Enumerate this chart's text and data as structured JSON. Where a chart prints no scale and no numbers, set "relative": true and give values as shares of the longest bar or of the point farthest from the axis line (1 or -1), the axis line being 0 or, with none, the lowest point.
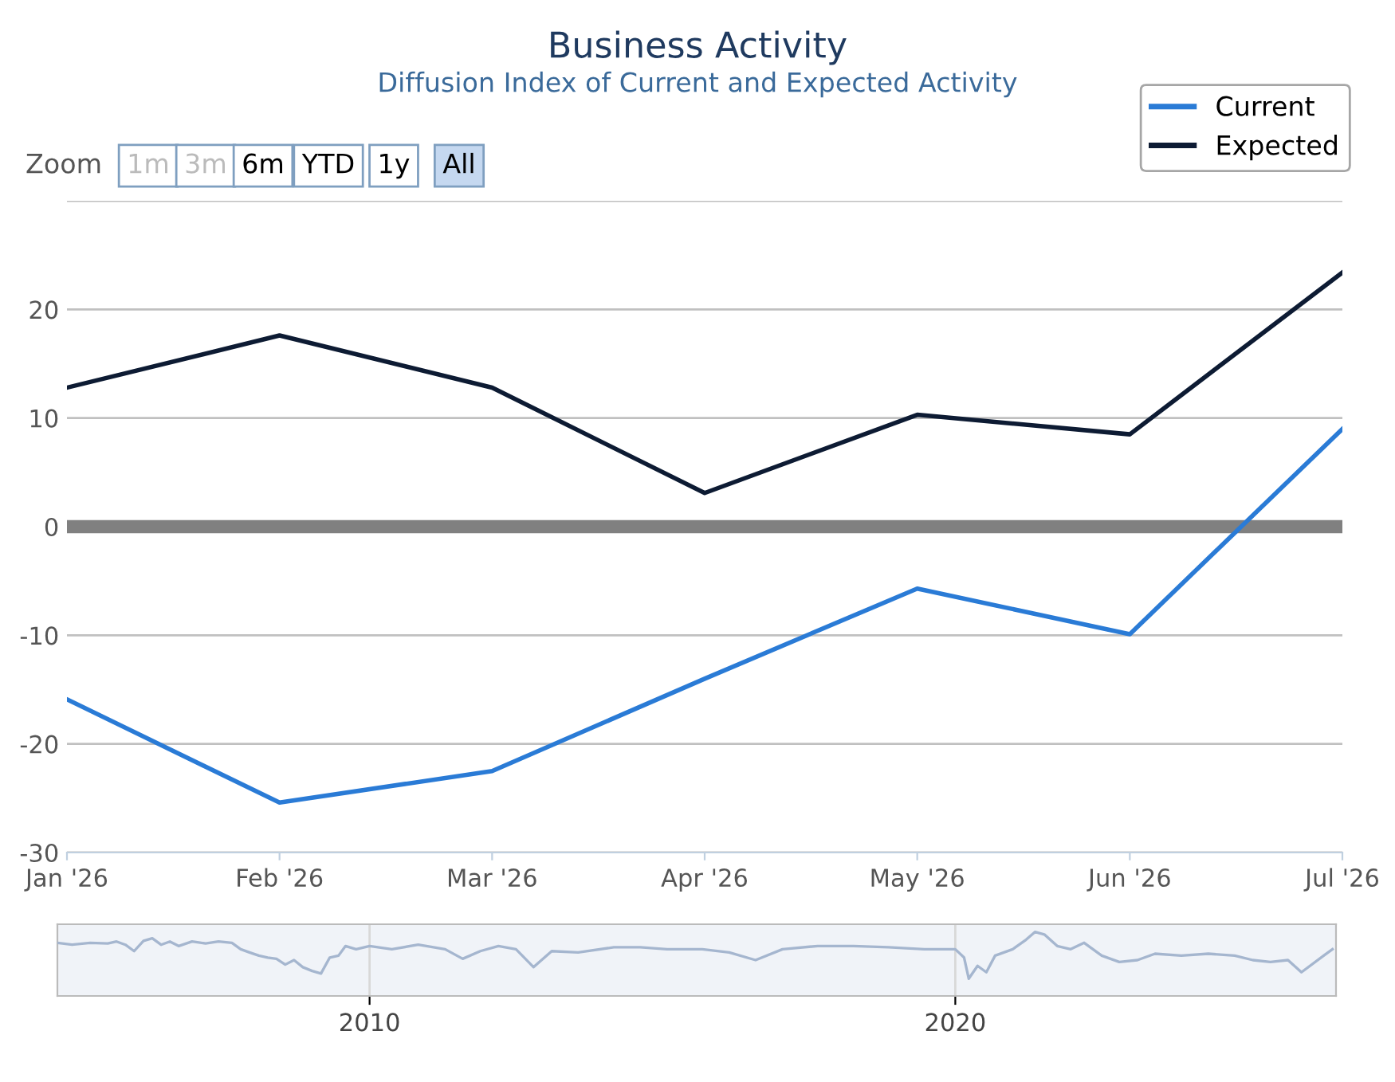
{
  "chart_data": [
    {
      "type": "line",
      "title": "Business Activity",
      "subtitle": "Diffusion Index of Current and Expected Activity",
      "categories": [
        "Jan '26",
        "Feb '26",
        "Mar '26",
        "Apr '26",
        "May '26",
        "Jun '26",
        "Jul '26"
      ],
      "series": [
        {
          "name": "Current",
          "color": "#2a7bd6",
          "values": [
            -15.9,
            -25.4,
            -22.5,
            -14.0,
            -5.7,
            -9.9,
            9.0
          ]
        },
        {
          "name": "Expected",
          "color": "#0d1b33",
          "values": [
            12.8,
            17.6,
            12.8,
            3.1,
            10.3,
            8.5,
            23.4
          ]
        }
      ],
      "ylim": [
        -30,
        30
      ],
      "yticks": [
        -30,
        -20,
        -10,
        0,
        10,
        20,
        {
          "value": 30,
          "label": null
        }
      ],
      "grid": "y",
      "legend": "top right",
      "marker": "none",
      "line_style": "solid",
      "ref_lines": [
        {
          "axis": "y",
          "value": 0,
          "color": "#808080"
        }
      ],
      "annotations": [
        "Zoom",
        "1m",
        "3m",
        "6m",
        "YTD",
        "1y",
        "All"
      ]
    },
    {
      "type": "line",
      "relative": true,
      "tick_labels": "x",
      "grid": "x",
      "x": [
        2004.67,
        2004.92,
        2005.23,
        2005.53,
        2005.68,
        2005.83,
        2005.98,
        2006.14,
        2006.29,
        2006.44,
        2006.59,
        2006.74,
        2006.97,
        2007.2,
        2007.42,
        2007.65,
        2007.8,
        2007.95,
        2008.11,
        2008.26,
        2008.41,
        2008.56,
        2008.71,
        2008.86,
        2009.02,
        2009.17,
        2009.32,
        2009.47,
        2009.59,
        2009.77,
        2010.0,
        2010.38,
        2010.83,
        2011.29,
        2011.59,
        2011.89,
        2012.2,
        2012.5,
        2012.8,
        2013.11,
        2013.56,
        2014.17,
        2014.62,
        2015.08,
        2015.68,
        2016.14,
        2016.59,
        2017.05,
        2017.65,
        2018.26,
        2018.86,
        2019.47,
        2020.0,
        2020.15,
        2020.23,
        2020.38,
        2020.53,
        2020.68,
        2020.98,
        2021.21,
        2021.36,
        2021.52,
        2021.74,
        2021.97,
        2022.2,
        2022.5,
        2022.8,
        2023.11,
        2023.41,
        2023.86,
        2024.32,
        2024.77,
        2025.08,
        2025.38,
        2025.68,
        2025.91,
        2026.29,
        2026.44
      ],
      "series": [
        {
          "color": "#a5b6cf",
          "values": [
            0.83,
            0.8,
            0.83,
            0.82,
            0.85,
            0.8,
            0.7,
            0.86,
            0.9,
            0.8,
            0.85,
            0.78,
            0.85,
            0.82,
            0.85,
            0.83,
            0.73,
            0.68,
            0.63,
            0.6,
            0.58,
            0.49,
            0.56,
            0.45,
            0.39,
            0.35,
            0.6,
            0.63,
            0.78,
            0.73,
            0.78,
            0.73,
            0.8,
            0.73,
            0.58,
            0.7,
            0.78,
            0.73,
            0.45,
            0.7,
            0.68,
            0.76,
            0.76,
            0.73,
            0.73,
            0.68,
            0.56,
            0.73,
            0.78,
            0.78,
            0.76,
            0.73,
            0.73,
            0.6,
            0.27,
            0.47,
            0.37,
            0.63,
            0.73,
            0.88,
            1.0,
            0.96,
            0.78,
            0.73,
            0.83,
            0.63,
            0.53,
            0.56,
            0.66,
            0.63,
            0.66,
            0.63,
            0.56,
            0.53,
            0.56,
            0.37,
            0.63,
            0.73
          ]
        }
      ],
      "xlim": [
        2004.67,
        2026.5
      ],
      "xticks": [
        2010,
        2020
      ]
    }
  ]
}
